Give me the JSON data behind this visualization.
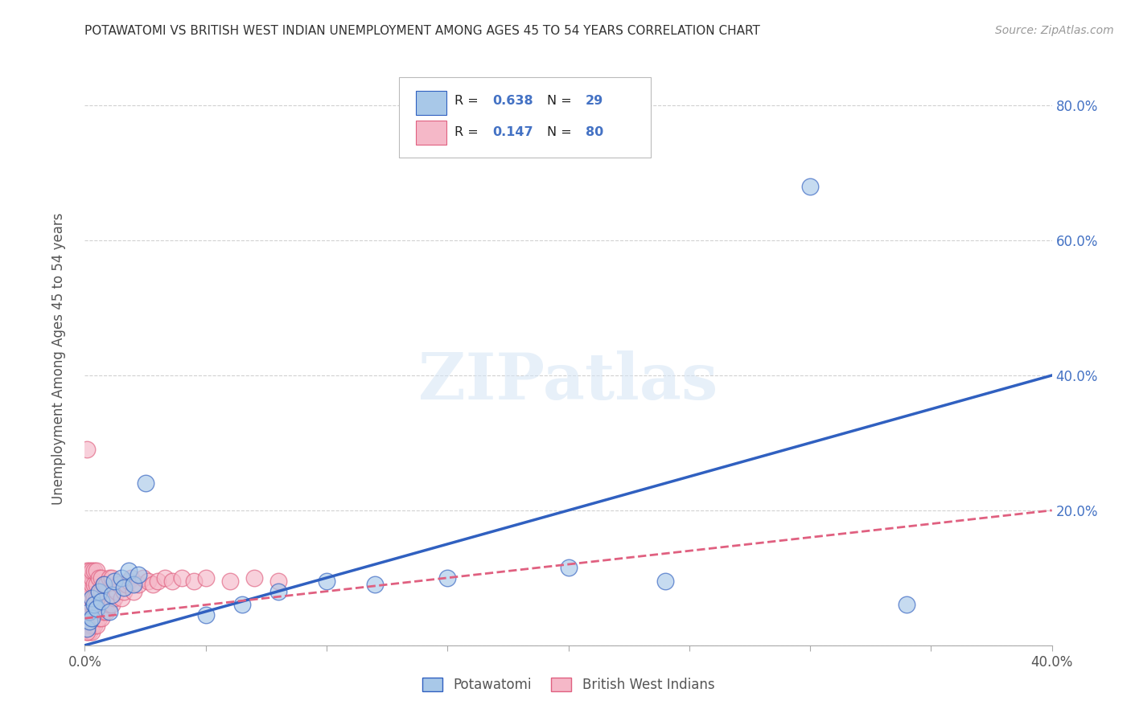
{
  "title": "POTAWATOMI VS BRITISH WEST INDIAN UNEMPLOYMENT AMONG AGES 45 TO 54 YEARS CORRELATION CHART",
  "source": "Source: ZipAtlas.com",
  "ylabel": "Unemployment Among Ages 45 to 54 years",
  "xlim": [
    0.0,
    0.4
  ],
  "ylim": [
    0.0,
    0.85
  ],
  "xticks": [
    0.0,
    0.05,
    0.1,
    0.15,
    0.2,
    0.25,
    0.3,
    0.35,
    0.4
  ],
  "yticks": [
    0.0,
    0.2,
    0.4,
    0.6,
    0.8
  ],
  "watermark_text": "ZIPatlas",
  "legend_label1": "Potawatomi",
  "legend_label2": "British West Indians",
  "R1": "0.638",
  "N1": "29",
  "R2": "0.147",
  "N2": "80",
  "color1": "#a8c8e8",
  "color2": "#f5b8c8",
  "line1_color": "#3060c0",
  "line2_color": "#e06080",
  "pot_x": [
    0.001,
    0.002,
    0.002,
    0.003,
    0.003,
    0.004,
    0.005,
    0.006,
    0.007,
    0.008,
    0.01,
    0.011,
    0.012,
    0.015,
    0.016,
    0.018,
    0.02,
    0.022,
    0.025,
    0.05,
    0.065,
    0.08,
    0.1,
    0.12,
    0.15,
    0.2,
    0.24,
    0.3,
    0.34
  ],
  "pot_y": [
    0.025,
    0.035,
    0.05,
    0.04,
    0.07,
    0.06,
    0.055,
    0.08,
    0.065,
    0.09,
    0.05,
    0.075,
    0.095,
    0.1,
    0.085,
    0.11,
    0.09,
    0.105,
    0.24,
    0.045,
    0.06,
    0.08,
    0.095,
    0.09,
    0.1,
    0.115,
    0.095,
    0.68,
    0.06
  ],
  "bwi_x": [
    0.001,
    0.001,
    0.001,
    0.001,
    0.001,
    0.001,
    0.001,
    0.001,
    0.001,
    0.001,
    0.002,
    0.002,
    0.002,
    0.002,
    0.002,
    0.002,
    0.002,
    0.002,
    0.002,
    0.002,
    0.003,
    0.003,
    0.003,
    0.003,
    0.003,
    0.003,
    0.003,
    0.003,
    0.003,
    0.003,
    0.004,
    0.004,
    0.004,
    0.004,
    0.004,
    0.005,
    0.005,
    0.005,
    0.005,
    0.005,
    0.006,
    0.006,
    0.006,
    0.006,
    0.007,
    0.007,
    0.007,
    0.007,
    0.008,
    0.008,
    0.009,
    0.009,
    0.01,
    0.01,
    0.011,
    0.011,
    0.012,
    0.013,
    0.014,
    0.015,
    0.016,
    0.017,
    0.018,
    0.019,
    0.02,
    0.022,
    0.024,
    0.026,
    0.028,
    0.03,
    0.033,
    0.036,
    0.04,
    0.045,
    0.05,
    0.06,
    0.07,
    0.08,
    0.001,
    0.001
  ],
  "bwi_y": [
    0.02,
    0.03,
    0.04,
    0.05,
    0.06,
    0.07,
    0.08,
    0.09,
    0.1,
    0.11,
    0.02,
    0.03,
    0.04,
    0.05,
    0.06,
    0.07,
    0.08,
    0.09,
    0.1,
    0.11,
    0.02,
    0.03,
    0.04,
    0.05,
    0.06,
    0.07,
    0.08,
    0.09,
    0.1,
    0.11,
    0.03,
    0.05,
    0.07,
    0.09,
    0.11,
    0.03,
    0.05,
    0.07,
    0.09,
    0.11,
    0.04,
    0.06,
    0.08,
    0.1,
    0.04,
    0.06,
    0.08,
    0.1,
    0.05,
    0.09,
    0.05,
    0.09,
    0.06,
    0.1,
    0.06,
    0.1,
    0.07,
    0.08,
    0.09,
    0.07,
    0.08,
    0.09,
    0.095,
    0.1,
    0.08,
    0.09,
    0.1,
    0.095,
    0.09,
    0.095,
    0.1,
    0.095,
    0.1,
    0.095,
    0.1,
    0.095,
    0.1,
    0.095,
    0.29,
    0.02
  ],
  "blue_line_x": [
    0.0,
    0.4
  ],
  "blue_line_y": [
    0.0,
    0.4
  ],
  "pink_line_x": [
    0.0,
    0.4
  ],
  "pink_line_y": [
    0.04,
    0.2
  ]
}
